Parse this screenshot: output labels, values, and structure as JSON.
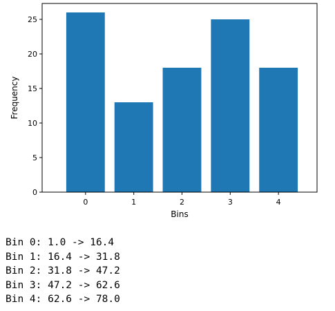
{
  "chart_data": {
    "type": "bar",
    "categories": [
      "0",
      "1",
      "2",
      "3",
      "4"
    ],
    "values": [
      26,
      13,
      18,
      25,
      18
    ],
    "title": "",
    "xlabel": "Bins",
    "ylabel": "Frequency",
    "ylim": [
      0,
      27.3
    ],
    "yticks": [
      0,
      5,
      10,
      15,
      20,
      25
    ],
    "grid": false,
    "color": "#1f77b4"
  },
  "output_lines": [
    "Bin 0: 1.0 -> 16.4",
    "Bin 1: 16.4 -> 31.8",
    "Bin 2: 31.8 -> 47.2",
    "Bin 3: 47.2 -> 62.6",
    "Bin 4: 62.6 -> 78.0"
  ]
}
